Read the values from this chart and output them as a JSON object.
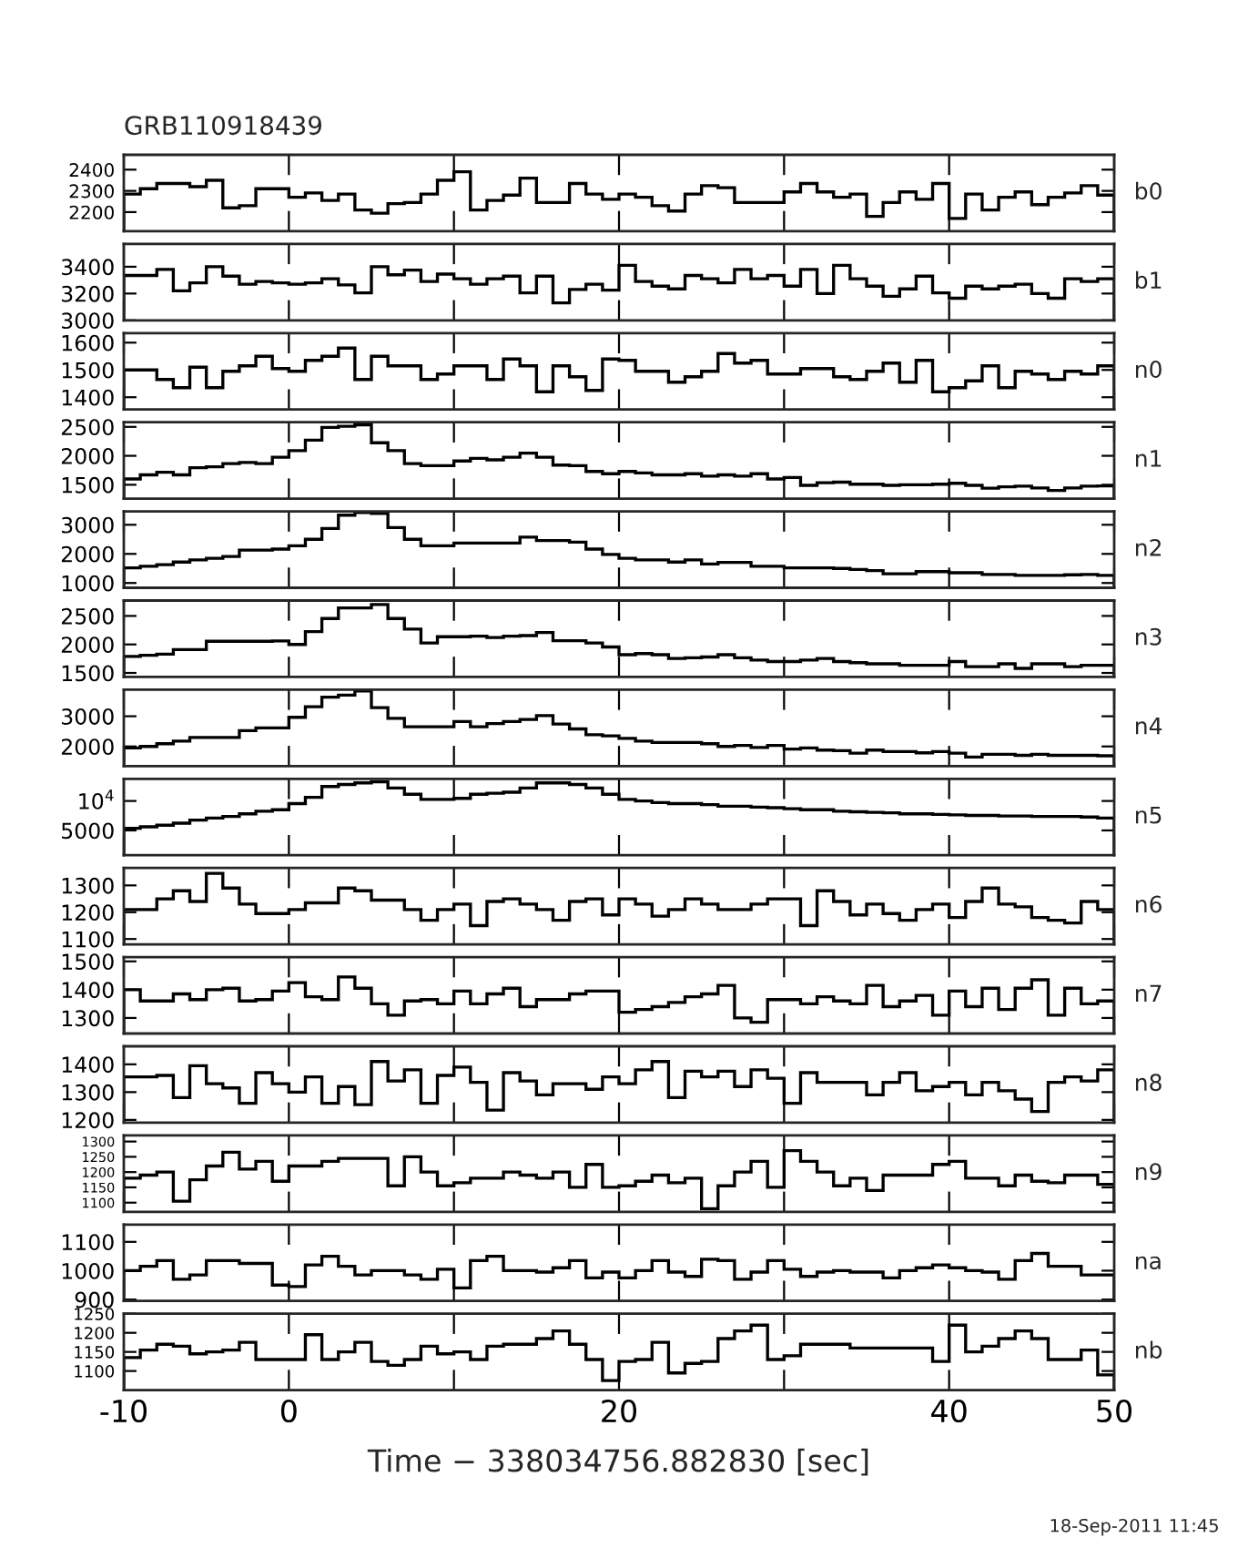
{
  "chart_data": [
    {
      "type": "histogram",
      "title": "GRB110918439",
      "color": "#000000",
      "bins": [
        -10,
        -9,
        -8,
        -7,
        -6,
        -5,
        -4,
        -3,
        -2,
        -1,
        0,
        1,
        2,
        3,
        4,
        5,
        6,
        7,
        8,
        9,
        10,
        11,
        12,
        13,
        14,
        15,
        16,
        17,
        18,
        19,
        20,
        21,
        22,
        23,
        24,
        25,
        26,
        27,
        28,
        29,
        30,
        31,
        32,
        33,
        34,
        35,
        36,
        37,
        38,
        39,
        40,
        41,
        42,
        43,
        44,
        45,
        46,
        47,
        48,
        49,
        50
      ],
      "values": [
        2285,
        2310,
        2335,
        2335,
        2320,
        2350,
        2220,
        2230,
        2310,
        2310,
        2270,
        2290,
        2255,
        2285,
        2210,
        2195,
        2240,
        2245,
        2285,
        2350,
        2390,
        2210,
        2255,
        2280,
        2360,
        2245,
        2245,
        2335,
        2285,
        2260,
        2285,
        2270,
        2230,
        2205,
        2285,
        2325,
        2315,
        2245,
        2245,
        2245,
        2295,
        2335,
        2295,
        2270,
        2285,
        2180,
        2245,
        2295,
        2260,
        2335,
        2170,
        2285,
        2210,
        2270,
        2295,
        2235,
        2270,
        2290,
        2325,
        2280
      ],
      "xlim": [
        -10,
        50
      ],
      "xticks": [
        -10,
        0,
        10,
        20,
        30,
        40,
        50
      ],
      "ylim": [
        2110,
        2470
      ],
      "yticks": [
        2200,
        2300,
        2400
      ],
      "tick_labels": "y",
      "annotations": [
        "b0"
      ]
    },
    {
      "type": "histogram",
      "color": "#000000",
      "bins": [
        -10,
        -9,
        -8,
        -7,
        -6,
        -5,
        -4,
        -3,
        -2,
        -1,
        0,
        1,
        2,
        3,
        4,
        5,
        6,
        7,
        8,
        9,
        10,
        11,
        12,
        13,
        14,
        15,
        16,
        17,
        18,
        19,
        20,
        21,
        22,
        23,
        24,
        25,
        26,
        27,
        28,
        29,
        30,
        31,
        32,
        33,
        34,
        35,
        36,
        37,
        38,
        39,
        40,
        41,
        42,
        43,
        44,
        45,
        46,
        47,
        48,
        49,
        50
      ],
      "values": [
        3335,
        3335,
        3380,
        3220,
        3280,
        3400,
        3330,
        3270,
        3290,
        3280,
        3270,
        3280,
        3310,
        3265,
        3205,
        3400,
        3340,
        3375,
        3290,
        3345,
        3310,
        3270,
        3310,
        3330,
        3205,
        3330,
        3130,
        3230,
        3270,
        3225,
        3410,
        3290,
        3255,
        3235,
        3335,
        3310,
        3280,
        3380,
        3310,
        3335,
        3255,
        3380,
        3200,
        3410,
        3310,
        3255,
        3180,
        3235,
        3330,
        3205,
        3165,
        3255,
        3235,
        3255,
        3270,
        3200,
        3165,
        3310,
        3290,
        3310
      ],
      "xlim": [
        -10,
        50
      ],
      "xticks": [
        -10,
        0,
        10,
        20,
        30,
        40,
        50
      ],
      "ylim": [
        3000,
        3570
      ],
      "yticks": [
        3000,
        3200,
        3400
      ],
      "tick_labels": "y",
      "annotations": [
        "b1"
      ]
    },
    {
      "type": "histogram",
      "color": "#000000",
      "bins": [
        -10,
        -9,
        -8,
        -7,
        -6,
        -5,
        -4,
        -3,
        -2,
        -1,
        0,
        1,
        2,
        3,
        4,
        5,
        6,
        7,
        8,
        9,
        10,
        11,
        12,
        13,
        14,
        15,
        16,
        17,
        18,
        19,
        20,
        21,
        22,
        23,
        24,
        25,
        26,
        27,
        28,
        29,
        30,
        31,
        32,
        33,
        34,
        35,
        36,
        37,
        38,
        39,
        40,
        41,
        42,
        43,
        44,
        45,
        46,
        47,
        48,
        49,
        50
      ],
      "values": [
        1500,
        1500,
        1465,
        1435,
        1510,
        1435,
        1495,
        1515,
        1550,
        1505,
        1495,
        1535,
        1550,
        1580,
        1465,
        1550,
        1515,
        1515,
        1465,
        1485,
        1515,
        1515,
        1465,
        1540,
        1515,
        1420,
        1515,
        1475,
        1425,
        1540,
        1535,
        1495,
        1495,
        1455,
        1475,
        1495,
        1560,
        1525,
        1535,
        1485,
        1485,
        1505,
        1505,
        1475,
        1465,
        1495,
        1525,
        1455,
        1535,
        1420,
        1435,
        1460,
        1515,
        1435,
        1495,
        1485,
        1465,
        1495,
        1485,
        1515
      ],
      "xlim": [
        -10,
        50
      ],
      "xticks": [
        -10,
        0,
        10,
        20,
        30,
        40,
        50
      ],
      "ylim": [
        1355,
        1635
      ],
      "yticks": [
        1400,
        1500,
        1600
      ],
      "tick_labels": "y",
      "annotations": [
        "n0"
      ]
    },
    {
      "type": "histogram",
      "color": "#000000",
      "bins": [
        -10,
        -9,
        -8,
        -7,
        -6,
        -5,
        -4,
        -3,
        -2,
        -1,
        0,
        1,
        2,
        3,
        4,
        5,
        6,
        7,
        8,
        9,
        10,
        11,
        12,
        13,
        14,
        15,
        16,
        17,
        18,
        19,
        20,
        21,
        22,
        23,
        24,
        25,
        26,
        27,
        28,
        29,
        30,
        31,
        32,
        33,
        34,
        35,
        36,
        37,
        38,
        39,
        40,
        41,
        42,
        43,
        44,
        45,
        46,
        47,
        48,
        49,
        50
      ],
      "values": [
        1600,
        1670,
        1715,
        1670,
        1795,
        1810,
        1865,
        1885,
        1865,
        1975,
        2090,
        2270,
        2490,
        2510,
        2535,
        2225,
        2090,
        1865,
        1830,
        1830,
        1910,
        1955,
        1930,
        1975,
        2045,
        1975,
        1840,
        1830,
        1730,
        1690,
        1730,
        1705,
        1670,
        1670,
        1690,
        1650,
        1670,
        1650,
        1690,
        1600,
        1625,
        1490,
        1535,
        1545,
        1510,
        1510,
        1490,
        1500,
        1500,
        1510,
        1525,
        1490,
        1440,
        1465,
        1475,
        1445,
        1400,
        1445,
        1475,
        1480
      ],
      "xlim": [
        -10,
        50
      ],
      "xticks": [
        -10,
        0,
        10,
        20,
        30,
        40,
        50
      ],
      "ylim": [
        1260,
        2580
      ],
      "yticks": [
        1500,
        2000,
        2500
      ],
      "tick_labels": "y",
      "annotations": [
        "n1"
      ]
    },
    {
      "type": "histogram",
      "color": "#000000",
      "bins": [
        -10,
        -9,
        -8,
        -7,
        -6,
        -5,
        -4,
        -3,
        -2,
        -1,
        0,
        1,
        2,
        3,
        4,
        5,
        6,
        7,
        8,
        9,
        10,
        11,
        12,
        13,
        14,
        15,
        16,
        17,
        18,
        19,
        20,
        21,
        22,
        23,
        24,
        25,
        26,
        27,
        28,
        29,
        30,
        31,
        32,
        33,
        34,
        35,
        36,
        37,
        38,
        39,
        40,
        41,
        42,
        43,
        44,
        45,
        46,
        47,
        48,
        49,
        50
      ],
      "values": [
        1520,
        1575,
        1630,
        1720,
        1795,
        1850,
        1910,
        2130,
        2130,
        2165,
        2280,
        2500,
        2870,
        3330,
        3425,
        3390,
        2905,
        2500,
        2280,
        2280,
        2370,
        2370,
        2370,
        2370,
        2575,
        2460,
        2460,
        2405,
        2165,
        1980,
        1850,
        1795,
        1795,
        1720,
        1795,
        1650,
        1705,
        1705,
        1575,
        1575,
        1520,
        1520,
        1520,
        1500,
        1465,
        1425,
        1315,
        1315,
        1390,
        1390,
        1350,
        1350,
        1295,
        1295,
        1260,
        1260,
        1260,
        1280,
        1295,
        1260
      ],
      "xlim": [
        -10,
        50
      ],
      "xticks": [
        -10,
        0,
        10,
        20,
        30,
        40,
        50
      ],
      "ylim": [
        835,
        3460
      ],
      "yticks": [
        1000,
        2000,
        3000
      ],
      "tick_labels": "y",
      "annotations": [
        "n2"
      ]
    },
    {
      "type": "histogram",
      "color": "#000000",
      "bins": [
        -10,
        -9,
        -8,
        -7,
        -6,
        -5,
        -4,
        -3,
        -2,
        -1,
        0,
        1,
        2,
        3,
        4,
        5,
        6,
        7,
        8,
        9,
        10,
        11,
        12,
        13,
        14,
        15,
        16,
        17,
        18,
        19,
        20,
        21,
        22,
        23,
        24,
        25,
        26,
        27,
        28,
        29,
        30,
        31,
        32,
        33,
        34,
        35,
        36,
        37,
        38,
        39,
        40,
        41,
        42,
        43,
        44,
        45,
        46,
        47,
        48,
        49,
        50
      ],
      "values": [
        1790,
        1810,
        1830,
        1910,
        1910,
        2055,
        2055,
        2055,
        2055,
        2060,
        2000,
        2225,
        2455,
        2640,
        2640,
        2700,
        2455,
        2270,
        2025,
        2135,
        2135,
        2145,
        2120,
        2145,
        2155,
        2210,
        2065,
        2065,
        2025,
        1955,
        1820,
        1840,
        1820,
        1755,
        1765,
        1780,
        1820,
        1765,
        1725,
        1700,
        1700,
        1725,
        1755,
        1700,
        1680,
        1660,
        1660,
        1635,
        1635,
        1635,
        1700,
        1610,
        1610,
        1660,
        1580,
        1660,
        1660,
        1610,
        1635,
        1635
      ],
      "xlim": [
        -10,
        50
      ],
      "xticks": [
        -10,
        0,
        10,
        20,
        30,
        40,
        50
      ],
      "ylim": [
        1430,
        2770
      ],
      "yticks": [
        1500,
        2000,
        2500
      ],
      "tick_labels": "y",
      "annotations": [
        "n3"
      ]
    },
    {
      "type": "histogram",
      "color": "#000000",
      "bins": [
        -10,
        -9,
        -8,
        -7,
        -6,
        -5,
        -4,
        -3,
        -2,
        -1,
        0,
        1,
        2,
        3,
        4,
        5,
        6,
        7,
        8,
        9,
        10,
        11,
        12,
        13,
        14,
        15,
        16,
        17,
        18,
        19,
        20,
        21,
        22,
        23,
        24,
        25,
        26,
        27,
        28,
        29,
        30,
        31,
        32,
        33,
        34,
        35,
        36,
        37,
        38,
        39,
        40,
        41,
        42,
        43,
        44,
        45,
        46,
        47,
        48,
        49,
        50
      ],
      "values": [
        1950,
        2000,
        2090,
        2175,
        2300,
        2300,
        2300,
        2525,
        2615,
        2615,
        2965,
        3315,
        3630,
        3700,
        3840,
        3285,
        2930,
        2650,
        2650,
        2650,
        2825,
        2650,
        2755,
        2825,
        2895,
        3020,
        2740,
        2580,
        2390,
        2350,
        2265,
        2175,
        2130,
        2130,
        2130,
        2090,
        2000,
        2035,
        1965,
        2035,
        1915,
        1950,
        1880,
        1860,
        1775,
        1880,
        1830,
        1830,
        1790,
        1830,
        1775,
        1650,
        1740,
        1740,
        1705,
        1740,
        1705,
        1705,
        1705,
        1690
      ],
      "xlim": [
        -10,
        50
      ],
      "xticks": [
        -10,
        0,
        10,
        20,
        30,
        40,
        50
      ],
      "ylim": [
        1350,
        3880
      ],
      "yticks": [
        2000,
        3000
      ],
      "tick_labels": "y",
      "annotations": [
        "n4"
      ]
    },
    {
      "type": "histogram",
      "color": "#000000",
      "bins": [
        -10,
        -9,
        -8,
        -7,
        -6,
        -5,
        -4,
        -3,
        -2,
        -1,
        0,
        1,
        2,
        3,
        4,
        5,
        6,
        7,
        8,
        9,
        10,
        11,
        12,
        13,
        14,
        15,
        16,
        17,
        18,
        19,
        20,
        21,
        22,
        23,
        24,
        25,
        26,
        27,
        28,
        29,
        30,
        31,
        32,
        33,
        34,
        35,
        36,
        37,
        38,
        39,
        40,
        41,
        42,
        43,
        44,
        45,
        46,
        47,
        48,
        49,
        50
      ],
      "values": [
        5350,
        5615,
        5880,
        6230,
        6755,
        7100,
        7370,
        7810,
        8250,
        8510,
        9560,
        10610,
        12460,
        12800,
        13070,
        13245,
        12190,
        11140,
        10260,
        10260,
        10440,
        11140,
        11315,
        11490,
        12190,
        13070,
        13070,
        12800,
        12190,
        11140,
        10260,
        10000,
        9740,
        9560,
        9560,
        9385,
        9120,
        9120,
        8950,
        8860,
        8680,
        8510,
        8510,
        8250,
        8160,
        8070,
        7980,
        7810,
        7810,
        7720,
        7630,
        7540,
        7540,
        7460,
        7460,
        7370,
        7370,
        7370,
        7280,
        7100
      ],
      "xlim": [
        -10,
        50
      ],
      "xticks": [
        -10,
        0,
        10,
        20,
        30,
        40,
        50
      ],
      "ylim": [
        790,
        13760
      ],
      "yticks": [
        5000,
        {
          "value": 10000,
          "label": "10$^{4}$"
        }
      ],
      "tick_labels": "y",
      "annotations": [
        "n5"
      ]
    },
    {
      "type": "histogram",
      "color": "#000000",
      "bins": [
        -10,
        -9,
        -8,
        -7,
        -6,
        -5,
        -4,
        -3,
        -2,
        -1,
        0,
        1,
        2,
        3,
        4,
        5,
        6,
        7,
        8,
        9,
        10,
        11,
        12,
        13,
        14,
        15,
        16,
        17,
        18,
        19,
        20,
        21,
        22,
        23,
        24,
        25,
        26,
        27,
        28,
        29,
        30,
        31,
        32,
        33,
        34,
        35,
        36,
        37,
        38,
        39,
        40,
        41,
        42,
        43,
        44,
        45,
        46,
        47,
        48,
        49,
        50
      ],
      "values": [
        1210,
        1210,
        1250,
        1280,
        1240,
        1345,
        1290,
        1230,
        1195,
        1195,
        1210,
        1235,
        1235,
        1290,
        1280,
        1245,
        1245,
        1210,
        1170,
        1210,
        1230,
        1150,
        1240,
        1250,
        1230,
        1210,
        1170,
        1240,
        1250,
        1190,
        1250,
        1230,
        1185,
        1210,
        1250,
        1230,
        1210,
        1210,
        1230,
        1250,
        1250,
        1150,
        1280,
        1240,
        1190,
        1230,
        1195,
        1170,
        1210,
        1230,
        1180,
        1240,
        1290,
        1230,
        1220,
        1180,
        1170,
        1160,
        1240,
        1210
      ],
      "xlim": [
        -10,
        50
      ],
      "xticks": [
        -10,
        0,
        10,
        20,
        30,
        40,
        50
      ],
      "ylim": [
        1080,
        1365
      ],
      "yticks": [
        1100,
        1200,
        1300
      ],
      "tick_labels": "y",
      "annotations": [
        "n6"
      ]
    },
    {
      "type": "histogram",
      "color": "#000000",
      "bins": [
        -10,
        -9,
        -8,
        -7,
        -6,
        -5,
        -4,
        -3,
        -2,
        -1,
        0,
        1,
        2,
        3,
        4,
        5,
        6,
        7,
        8,
        9,
        10,
        11,
        12,
        13,
        14,
        15,
        16,
        17,
        18,
        19,
        20,
        21,
        22,
        23,
        24,
        25,
        26,
        27,
        28,
        29,
        30,
        31,
        32,
        33,
        34,
        35,
        36,
        37,
        38,
        39,
        40,
        41,
        42,
        43,
        44,
        45,
        46,
        47,
        48,
        49,
        50
      ],
      "values": [
        1400,
        1360,
        1360,
        1385,
        1365,
        1400,
        1405,
        1360,
        1365,
        1395,
        1425,
        1375,
        1365,
        1445,
        1405,
        1350,
        1310,
        1360,
        1365,
        1350,
        1395,
        1350,
        1385,
        1405,
        1340,
        1365,
        1365,
        1385,
        1395,
        1395,
        1320,
        1330,
        1340,
        1355,
        1375,
        1385,
        1415,
        1300,
        1285,
        1365,
        1365,
        1350,
        1375,
        1360,
        1350,
        1415,
        1340,
        1360,
        1380,
        1310,
        1395,
        1340,
        1405,
        1330,
        1405,
        1435,
        1310,
        1405,
        1350,
        1360
      ],
      "xlim": [
        -10,
        50
      ],
      "xticks": [
        -10,
        0,
        10,
        20,
        30,
        40,
        50
      ],
      "ylim": [
        1245,
        1515
      ],
      "yticks": [
        1300,
        1400,
        1500
      ],
      "tick_labels": "y",
      "annotations": [
        "n7"
      ]
    },
    {
      "type": "histogram",
      "color": "#000000",
      "bins": [
        -10,
        -9,
        -8,
        -7,
        -6,
        -5,
        -4,
        -3,
        -2,
        -1,
        0,
        1,
        2,
        3,
        4,
        5,
        6,
        7,
        8,
        9,
        10,
        11,
        12,
        13,
        14,
        15,
        16,
        17,
        18,
        19,
        20,
        21,
        22,
        23,
        24,
        25,
        26,
        27,
        28,
        29,
        30,
        31,
        32,
        33,
        34,
        35,
        36,
        37,
        38,
        39,
        40,
        41,
        42,
        43,
        44,
        45,
        46,
        47,
        48,
        49,
        50
      ],
      "values": [
        1355,
        1355,
        1360,
        1280,
        1395,
        1330,
        1315,
        1260,
        1370,
        1330,
        1300,
        1355,
        1260,
        1320,
        1255,
        1410,
        1340,
        1380,
        1260,
        1360,
        1390,
        1335,
        1235,
        1370,
        1340,
        1290,
        1330,
        1330,
        1310,
        1355,
        1330,
        1380,
        1410,
        1280,
        1375,
        1355,
        1375,
        1320,
        1380,
        1350,
        1260,
        1370,
        1335,
        1335,
        1335,
        1290,
        1335,
        1370,
        1305,
        1320,
        1335,
        1290,
        1335,
        1305,
        1275,
        1230,
        1335,
        1355,
        1340,
        1380
      ],
      "xlim": [
        -10,
        50
      ],
      "xticks": [
        -10,
        0,
        10,
        20,
        30,
        40,
        50
      ],
      "ylim": [
        1190,
        1465
      ],
      "yticks": [
        1200,
        1300,
        1400
      ],
      "tick_labels": "y",
      "annotations": [
        "n8"
      ]
    },
    {
      "type": "histogram",
      "color": "#000000",
      "bins": [
        -10,
        -9,
        -8,
        -7,
        -6,
        -5,
        -4,
        -3,
        -2,
        -1,
        0,
        1,
        2,
        3,
        4,
        5,
        6,
        7,
        8,
        9,
        10,
        11,
        12,
        13,
        14,
        15,
        16,
        17,
        18,
        19,
        20,
        21,
        22,
        23,
        24,
        25,
        26,
        27,
        28,
        29,
        30,
        31,
        32,
        33,
        34,
        35,
        36,
        37,
        38,
        39,
        40,
        41,
        42,
        43,
        44,
        45,
        46,
        47,
        48,
        49,
        50
      ],
      "values": [
        1180,
        1190,
        1200,
        1105,
        1175,
        1220,
        1265,
        1210,
        1235,
        1170,
        1220,
        1220,
        1235,
        1245,
        1245,
        1245,
        1155,
        1250,
        1200,
        1155,
        1165,
        1180,
        1180,
        1200,
        1190,
        1180,
        1200,
        1150,
        1225,
        1150,
        1155,
        1170,
        1190,
        1165,
        1180,
        1080,
        1155,
        1200,
        1235,
        1150,
        1270,
        1235,
        1200,
        1155,
        1180,
        1140,
        1190,
        1190,
        1190,
        1225,
        1235,
        1180,
        1180,
        1155,
        1190,
        1170,
        1165,
        1190,
        1190,
        1160
      ],
      "xlim": [
        -10,
        50
      ],
      "xticks": [
        -10,
        0,
        10,
        20,
        30,
        40,
        50
      ],
      "ylim": [
        1070,
        1320
      ],
      "yticks": [
        1100,
        1150,
        1200,
        1250,
        1300
      ],
      "tick_labels": "y",
      "annotations": [
        "n9"
      ]
    },
    {
      "type": "histogram",
      "color": "#000000",
      "bins": [
        -10,
        -9,
        -8,
        -7,
        -6,
        -5,
        -4,
        -3,
        -2,
        -1,
        0,
        1,
        2,
        3,
        4,
        5,
        6,
        7,
        8,
        9,
        10,
        11,
        12,
        13,
        14,
        15,
        16,
        17,
        18,
        19,
        20,
        21,
        22,
        23,
        24,
        25,
        26,
        27,
        28,
        29,
        30,
        31,
        32,
        33,
        34,
        35,
        36,
        37,
        38,
        39,
        40,
        41,
        42,
        43,
        44,
        45,
        46,
        47,
        48,
        49,
        50
      ],
      "values": [
        1000,
        1015,
        1035,
        970,
        985,
        1035,
        1035,
        1025,
        1025,
        950,
        945,
        1020,
        1050,
        1015,
        985,
        1000,
        1000,
        985,
        970,
        1005,
        940,
        1035,
        1050,
        1000,
        1000,
        995,
        1010,
        1035,
        975,
        995,
        975,
        1000,
        1035,
        995,
        980,
        1040,
        1035,
        970,
        995,
        1035,
        1005,
        980,
        995,
        1000,
        995,
        995,
        975,
        1000,
        1010,
        1020,
        1010,
        1000,
        995,
        970,
        1035,
        1060,
        1015,
        1015,
        985,
        985
      ],
      "xlim": [
        -10,
        50
      ],
      "xticks": [
        -10,
        0,
        10,
        20,
        30,
        40,
        50
      ],
      "ylim": [
        895,
        1160
      ],
      "yticks": [
        900,
        1000,
        1100
      ],
      "tick_labels": "y",
      "annotations": [
        "na"
      ]
    },
    {
      "type": "histogram",
      "color": "#000000",
      "bins": [
        -10,
        -9,
        -8,
        -7,
        -6,
        -5,
        -4,
        -3,
        -2,
        -1,
        0,
        1,
        2,
        3,
        4,
        5,
        6,
        7,
        8,
        9,
        10,
        11,
        12,
        13,
        14,
        15,
        16,
        17,
        18,
        19,
        20,
        21,
        22,
        23,
        24,
        25,
        26,
        27,
        28,
        29,
        30,
        31,
        32,
        33,
        34,
        35,
        36,
        37,
        38,
        39,
        40,
        41,
        42,
        43,
        44,
        45,
        46,
        47,
        48,
        49,
        50
      ],
      "values": [
        1135,
        1155,
        1170,
        1165,
        1145,
        1150,
        1155,
        1175,
        1130,
        1130,
        1130,
        1195,
        1130,
        1150,
        1175,
        1125,
        1115,
        1130,
        1165,
        1145,
        1150,
        1130,
        1165,
        1170,
        1170,
        1185,
        1205,
        1170,
        1130,
        1075,
        1125,
        1130,
        1175,
        1095,
        1120,
        1125,
        1185,
        1205,
        1220,
        1130,
        1140,
        1170,
        1170,
        1170,
        1160,
        1160,
        1160,
        1160,
        1160,
        1125,
        1220,
        1150,
        1165,
        1185,
        1205,
        1185,
        1130,
        1130,
        1155,
        1090
      ],
      "xlim": [
        -10,
        50
      ],
      "xticks": [
        -10,
        {
          "value": 0,
          "label": "0"
        },
        {
          "value": 10,
          "label": null
        },
        {
          "value": 20,
          "label": "20"
        },
        {
          "value": 30,
          "label": null
        },
        {
          "value": 40,
          "label": "40"
        },
        50
      ],
      "ylim": [
        1050,
        1250
      ],
      "yticks": [
        1100,
        1150,
        1200,
        1250
      ],
      "xlabel": "Time − 338034756.882830 [sec]",
      "annotations": [
        "nb",
        "18-Sep-2011 11:45"
      ]
    }
  ]
}
